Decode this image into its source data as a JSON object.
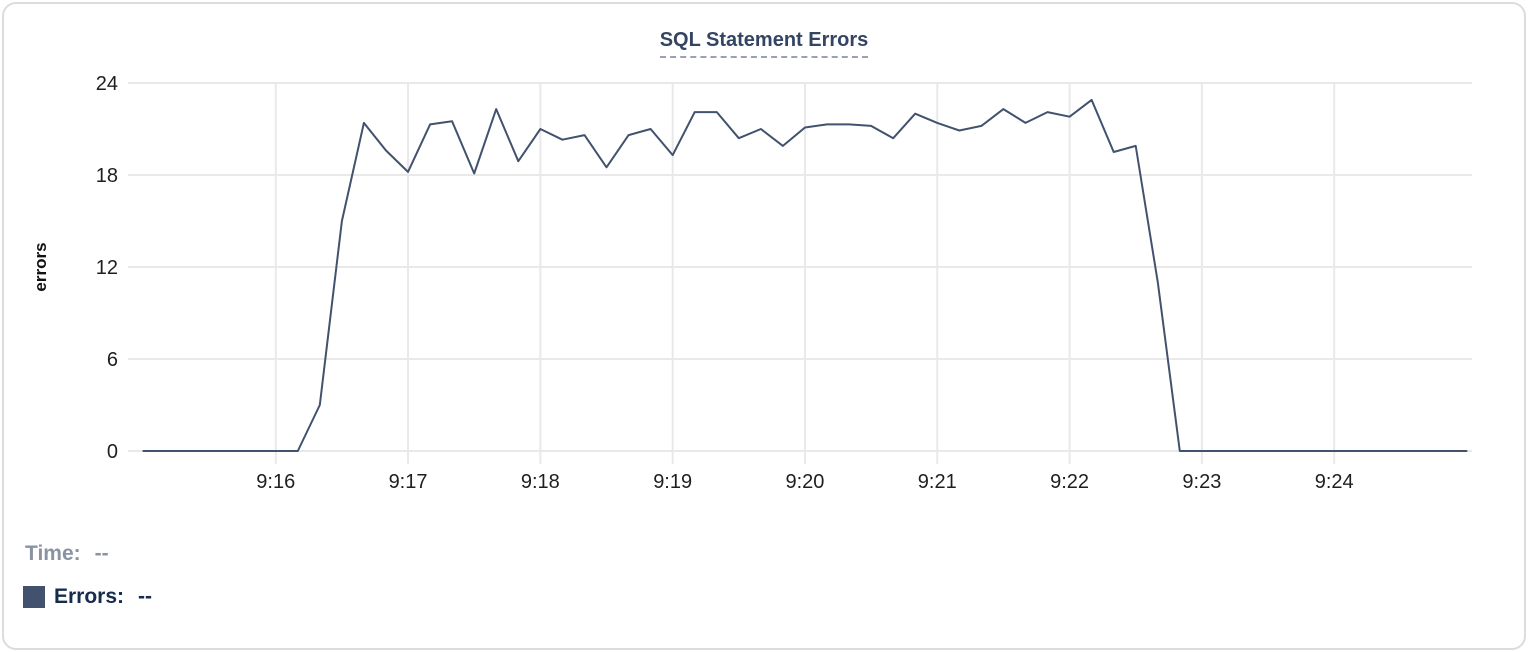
{
  "title": "SQL Statement Errors",
  "chart_data": {
    "type": "line",
    "title": "SQL Statement Errors",
    "xlabel": "",
    "ylabel": "errors",
    "ylim": [
      0,
      24
    ],
    "yticks": [
      0,
      6,
      12,
      18,
      24
    ],
    "xtick_labels": [
      "9:16",
      "9:17",
      "9:18",
      "9:19",
      "9:20",
      "9:21",
      "9:22",
      "9:23",
      "9:24"
    ],
    "grid": true,
    "legend_position": "none",
    "series_name": "Errors",
    "line_color": "#42526e",
    "gridline_color": "#e9e9e9",
    "x_interval_seconds": 10,
    "times": [
      "9:15:00",
      "9:15:10",
      "9:15:20",
      "9:15:30",
      "9:15:40",
      "9:15:50",
      "9:16:00",
      "9:16:10",
      "9:16:20",
      "9:16:30",
      "9:16:40",
      "9:16:50",
      "9:17:00",
      "9:17:10",
      "9:17:20",
      "9:17:30",
      "9:17:40",
      "9:17:50",
      "9:18:00",
      "9:18:10",
      "9:18:20",
      "9:18:30",
      "9:18:40",
      "9:18:50",
      "9:19:00",
      "9:19:10",
      "9:19:20",
      "9:19:30",
      "9:19:40",
      "9:19:50",
      "9:20:00",
      "9:20:10",
      "9:20:20",
      "9:20:30",
      "9:20:40",
      "9:20:50",
      "9:21:00",
      "9:21:10",
      "9:21:20",
      "9:21:30",
      "9:21:40",
      "9:21:50",
      "9:22:00",
      "9:22:10",
      "9:22:20",
      "9:22:30",
      "9:22:40",
      "9:22:50",
      "9:23:00",
      "9:23:10",
      "9:23:20",
      "9:23:30",
      "9:23:40",
      "9:23:50",
      "9:24:00",
      "9:24:10",
      "9:24:20",
      "9:24:30",
      "9:24:40",
      "9:24:50",
      "9:25:00"
    ],
    "values": [
      0,
      0,
      0,
      0,
      0,
      0,
      0,
      0,
      3,
      15,
      21.4,
      19.6,
      18.2,
      21.3,
      21.5,
      18.1,
      22.3,
      18.9,
      21,
      20.3,
      20.6,
      18.5,
      20.6,
      21,
      19.3,
      22.1,
      22.1,
      20.4,
      21,
      19.9,
      21.1,
      21.3,
      21.3,
      21.2,
      20.4,
      22,
      21.4,
      20.9,
      21.2,
      22.3,
      21.4,
      22.1,
      21.8,
      22.9,
      19.5,
      19.9,
      11,
      0,
      0,
      0,
      0,
      0,
      0,
      0,
      0,
      0,
      0,
      0,
      0,
      0,
      0
    ]
  },
  "readout": {
    "time_label": "Time:",
    "time_value": "--",
    "errors_label": "Errors:",
    "errors_value": "--",
    "swatch_color": "#42526e"
  }
}
